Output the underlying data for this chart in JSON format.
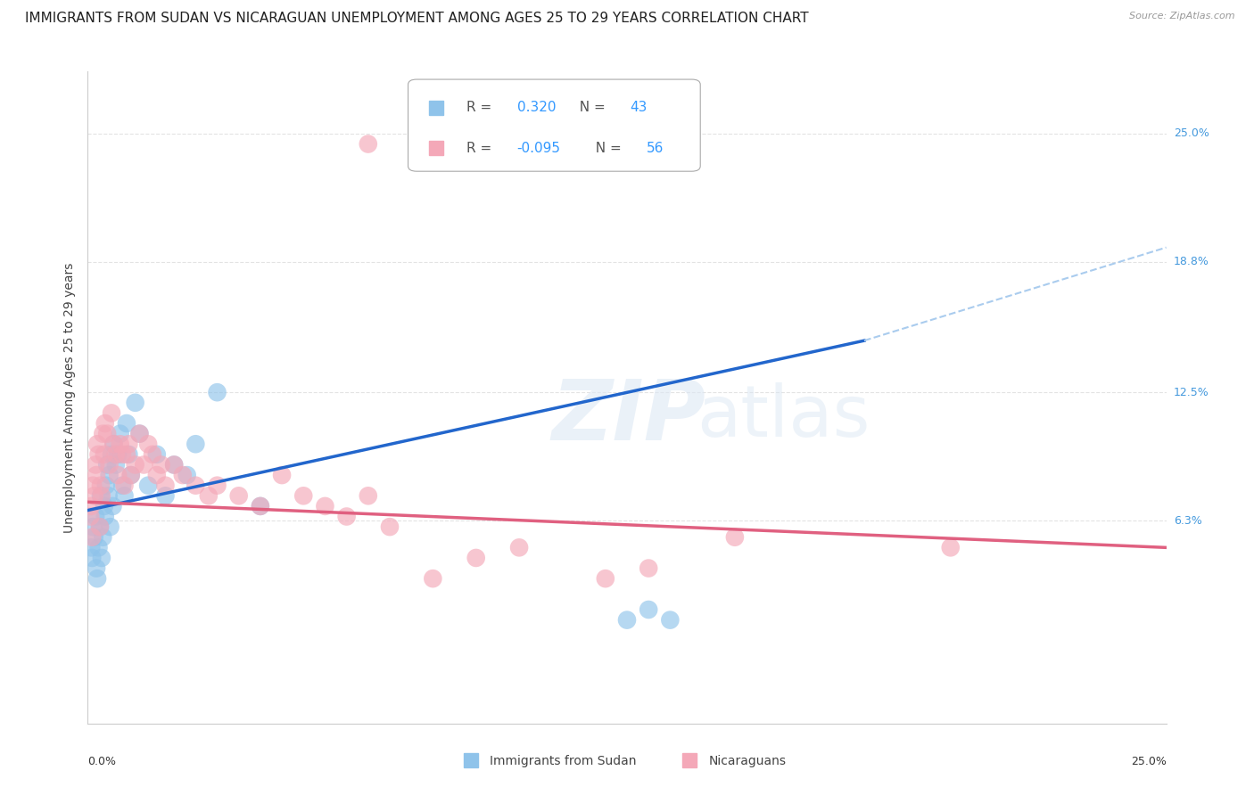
{
  "title": "IMMIGRANTS FROM SUDAN VS NICARAGUAN UNEMPLOYMENT AMONG AGES 25 TO 29 YEARS CORRELATION CHART",
  "source": "Source: ZipAtlas.com",
  "ylabel": "Unemployment Among Ages 25 to 29 years",
  "ytick_labels": [
    "6.3%",
    "12.5%",
    "18.8%",
    "25.0%"
  ],
  "ytick_values": [
    6.3,
    12.5,
    18.8,
    25.0
  ],
  "xlim": [
    0.0,
    25.0
  ],
  "ylim": [
    -3.5,
    28.0
  ],
  "legend_entries": [
    {
      "label": "Immigrants from Sudan",
      "R": "0.320",
      "N": "43",
      "color": "#8fc3ea"
    },
    {
      "label": "Nicaraguans",
      "R": "-0.095",
      "N": "56",
      "color": "#f4a8b8"
    }
  ],
  "watermark_zip": "ZIP",
  "watermark_atlas": "atlas",
  "blue_color": "#8fc3ea",
  "pink_color": "#f4a8b8",
  "blue_line_color": "#2266cc",
  "pink_line_color": "#e06080",
  "blue_dash_color": "#aaccee",
  "grid_color": "#dddddd",
  "background_color": "#ffffff",
  "title_fontsize": 11,
  "ylabel_fontsize": 10,
  "tick_fontsize": 9,
  "source_fontsize": 8,
  "blue_line_start_x": 0.0,
  "blue_line_start_y": 6.8,
  "blue_line_end_x": 18.0,
  "blue_line_end_y": 15.0,
  "blue_dash_end_x": 25.0,
  "blue_dash_end_y": 19.5,
  "pink_line_start_x": 0.0,
  "pink_line_start_y": 7.2,
  "pink_line_end_x": 25.0,
  "pink_line_end_y": 5.0,
  "blue_scatter_x": [
    0.08,
    0.1,
    0.12,
    0.15,
    0.18,
    0.2,
    0.22,
    0.25,
    0.28,
    0.3,
    0.32,
    0.35,
    0.38,
    0.4,
    0.42,
    0.45,
    0.48,
    0.5,
    0.52,
    0.55,
    0.58,
    0.6,
    0.65,
    0.7,
    0.75,
    0.8,
    0.85,
    0.9,
    0.95,
    1.0,
    1.1,
    1.2,
    1.4,
    1.6,
    1.8,
    2.0,
    2.3,
    2.5,
    3.0,
    4.0,
    12.5,
    13.5,
    13.0
  ],
  "blue_scatter_y": [
    5.0,
    4.5,
    6.0,
    5.5,
    6.5,
    4.0,
    3.5,
    5.0,
    6.0,
    7.5,
    4.5,
    5.5,
    7.0,
    6.5,
    8.0,
    9.0,
    7.5,
    8.5,
    6.0,
    9.5,
    7.0,
    10.0,
    9.0,
    9.5,
    10.5,
    8.0,
    7.5,
    11.0,
    9.5,
    8.5,
    12.0,
    10.5,
    8.0,
    9.5,
    7.5,
    9.0,
    8.5,
    10.0,
    12.5,
    7.0,
    1.5,
    1.5,
    2.0
  ],
  "pink_scatter_x": [
    0.06,
    0.08,
    0.1,
    0.12,
    0.15,
    0.18,
    0.2,
    0.22,
    0.25,
    0.28,
    0.3,
    0.32,
    0.35,
    0.38,
    0.4,
    0.45,
    0.5,
    0.55,
    0.6,
    0.65,
    0.7,
    0.75,
    0.8,
    0.85,
    0.9,
    0.95,
    1.0,
    1.1,
    1.2,
    1.3,
    1.4,
    1.5,
    1.6,
    1.7,
    1.8,
    2.0,
    2.2,
    2.5,
    2.8,
    3.0,
    3.5,
    4.0,
    4.5,
    5.0,
    5.5,
    6.0,
    6.5,
    7.0,
    8.0,
    9.0,
    10.0,
    12.0,
    13.0,
    15.0,
    20.0,
    6.5
  ],
  "pink_scatter_y": [
    6.5,
    7.0,
    5.5,
    8.0,
    7.5,
    9.0,
    8.5,
    10.0,
    9.5,
    6.0,
    8.0,
    7.5,
    10.5,
    9.5,
    11.0,
    10.5,
    9.0,
    11.5,
    10.0,
    9.5,
    8.5,
    10.0,
    9.5,
    8.0,
    9.5,
    10.0,
    8.5,
    9.0,
    10.5,
    9.0,
    10.0,
    9.5,
    8.5,
    9.0,
    8.0,
    9.0,
    8.5,
    8.0,
    7.5,
    8.0,
    7.5,
    7.0,
    8.5,
    7.5,
    7.0,
    6.5,
    7.5,
    6.0,
    3.5,
    4.5,
    5.0,
    3.5,
    4.0,
    5.5,
    5.0,
    24.5
  ]
}
